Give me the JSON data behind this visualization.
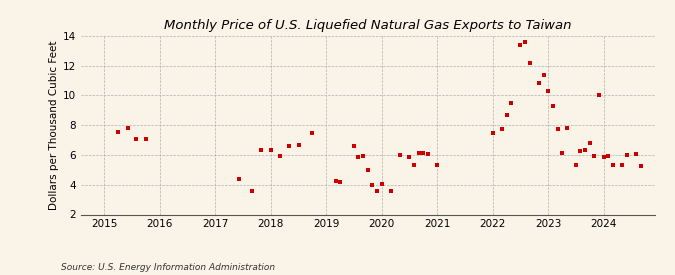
{
  "title": "Monthly Price of U.S. Liquefied Natural Gas Exports to Taiwan",
  "ylabel": "Dollars per Thousand Cubic Feet",
  "source": "Source: U.S. Energy Information Administration",
  "background_color": "#faf3e8",
  "marker_color": "#cc0000",
  "marker_size": 12,
  "ylim": [
    2,
    14
  ],
  "yticks": [
    2,
    4,
    6,
    8,
    10,
    12,
    14
  ],
  "data_points": [
    [
      2015.25,
      7.55
    ],
    [
      2015.42,
      7.8
    ],
    [
      2015.58,
      7.1
    ],
    [
      2015.75,
      7.05
    ],
    [
      2017.42,
      4.4
    ],
    [
      2017.67,
      3.55
    ],
    [
      2017.83,
      6.35
    ],
    [
      2018.0,
      6.3
    ],
    [
      2018.17,
      5.9
    ],
    [
      2018.33,
      6.6
    ],
    [
      2018.5,
      6.65
    ],
    [
      2018.75,
      7.45
    ],
    [
      2019.17,
      4.25
    ],
    [
      2019.25,
      4.2
    ],
    [
      2019.5,
      6.6
    ],
    [
      2019.58,
      5.85
    ],
    [
      2019.67,
      5.95
    ],
    [
      2019.75,
      5.0
    ],
    [
      2019.83,
      3.95
    ],
    [
      2019.92,
      3.6
    ],
    [
      2020.0,
      4.05
    ],
    [
      2020.17,
      3.6
    ],
    [
      2020.33,
      6.0
    ],
    [
      2020.5,
      5.85
    ],
    [
      2020.58,
      5.3
    ],
    [
      2020.67,
      6.1
    ],
    [
      2020.75,
      6.15
    ],
    [
      2020.83,
      6.05
    ],
    [
      2021.0,
      5.3
    ],
    [
      2022.0,
      7.5
    ],
    [
      2022.17,
      7.75
    ],
    [
      2022.25,
      8.65
    ],
    [
      2022.33,
      9.5
    ],
    [
      2022.5,
      13.35
    ],
    [
      2022.58,
      13.55
    ],
    [
      2022.67,
      12.2
    ],
    [
      2022.83,
      10.85
    ],
    [
      2022.92,
      11.35
    ],
    [
      2023.0,
      10.3
    ],
    [
      2023.08,
      9.3
    ],
    [
      2023.17,
      7.75
    ],
    [
      2023.25,
      6.1
    ],
    [
      2023.33,
      7.8
    ],
    [
      2023.5,
      5.35
    ],
    [
      2023.58,
      6.25
    ],
    [
      2023.67,
      6.3
    ],
    [
      2023.75,
      6.8
    ],
    [
      2023.83,
      5.9
    ],
    [
      2023.92,
      10.05
    ],
    [
      2024.0,
      5.85
    ],
    [
      2024.08,
      5.95
    ],
    [
      2024.17,
      5.35
    ],
    [
      2024.33,
      5.3
    ],
    [
      2024.42,
      6.0
    ],
    [
      2024.58,
      6.05
    ],
    [
      2024.67,
      5.25
    ]
  ],
  "xtick_years": [
    2015,
    2016,
    2017,
    2018,
    2019,
    2020,
    2021,
    2022,
    2023,
    2024
  ],
  "xlim": [
    2014.58,
    2024.92
  ],
  "title_fontsize": 9.5,
  "ylabel_fontsize": 7.5,
  "tick_fontsize": 7.5,
  "source_fontsize": 6.5
}
